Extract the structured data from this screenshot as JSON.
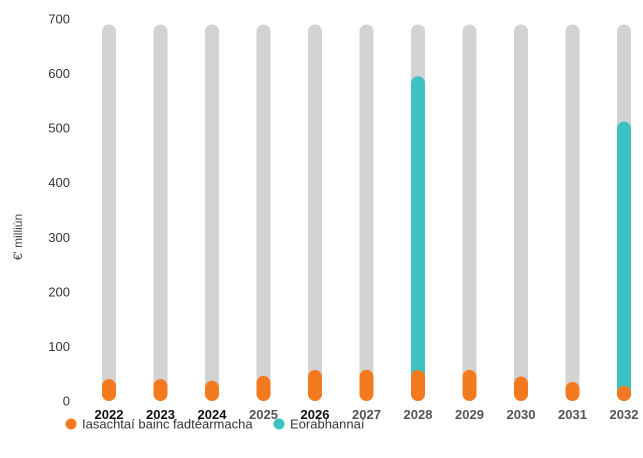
{
  "chart_data": {
    "type": "bar",
    "ylabel": "€' milliún",
    "ylim": [
      0,
      700
    ],
    "yticks": [
      0,
      100,
      200,
      300,
      400,
      500,
      600,
      700
    ],
    "categories": [
      "2022",
      "2023",
      "2024",
      "2025",
      "2026",
      "2027",
      "2028",
      "2029",
      "2030",
      "2031",
      "2032"
    ],
    "category_colors": [
      "#111111",
      "#111111",
      "#111111",
      "#555555",
      "#111111",
      "#555555",
      "#555555",
      "#555555",
      "#555555",
      "#555555",
      "#555555"
    ],
    "track_max": 690,
    "track_color": "#d3d3d3",
    "series": [
      {
        "name": "Iasachtaí bainc fadtéarmacha",
        "color": "#f47a20",
        "values": [
          40,
          40,
          37,
          46,
          57,
          57,
          57,
          57,
          45,
          35,
          28
        ]
      },
      {
        "name": "Eorabhannaí",
        "color": "#3cc2c2",
        "values": [
          0,
          0,
          0,
          0,
          0,
          0,
          595,
          0,
          0,
          0,
          512
        ]
      }
    ],
    "legend_position": "bottom-left",
    "grid": false
  }
}
